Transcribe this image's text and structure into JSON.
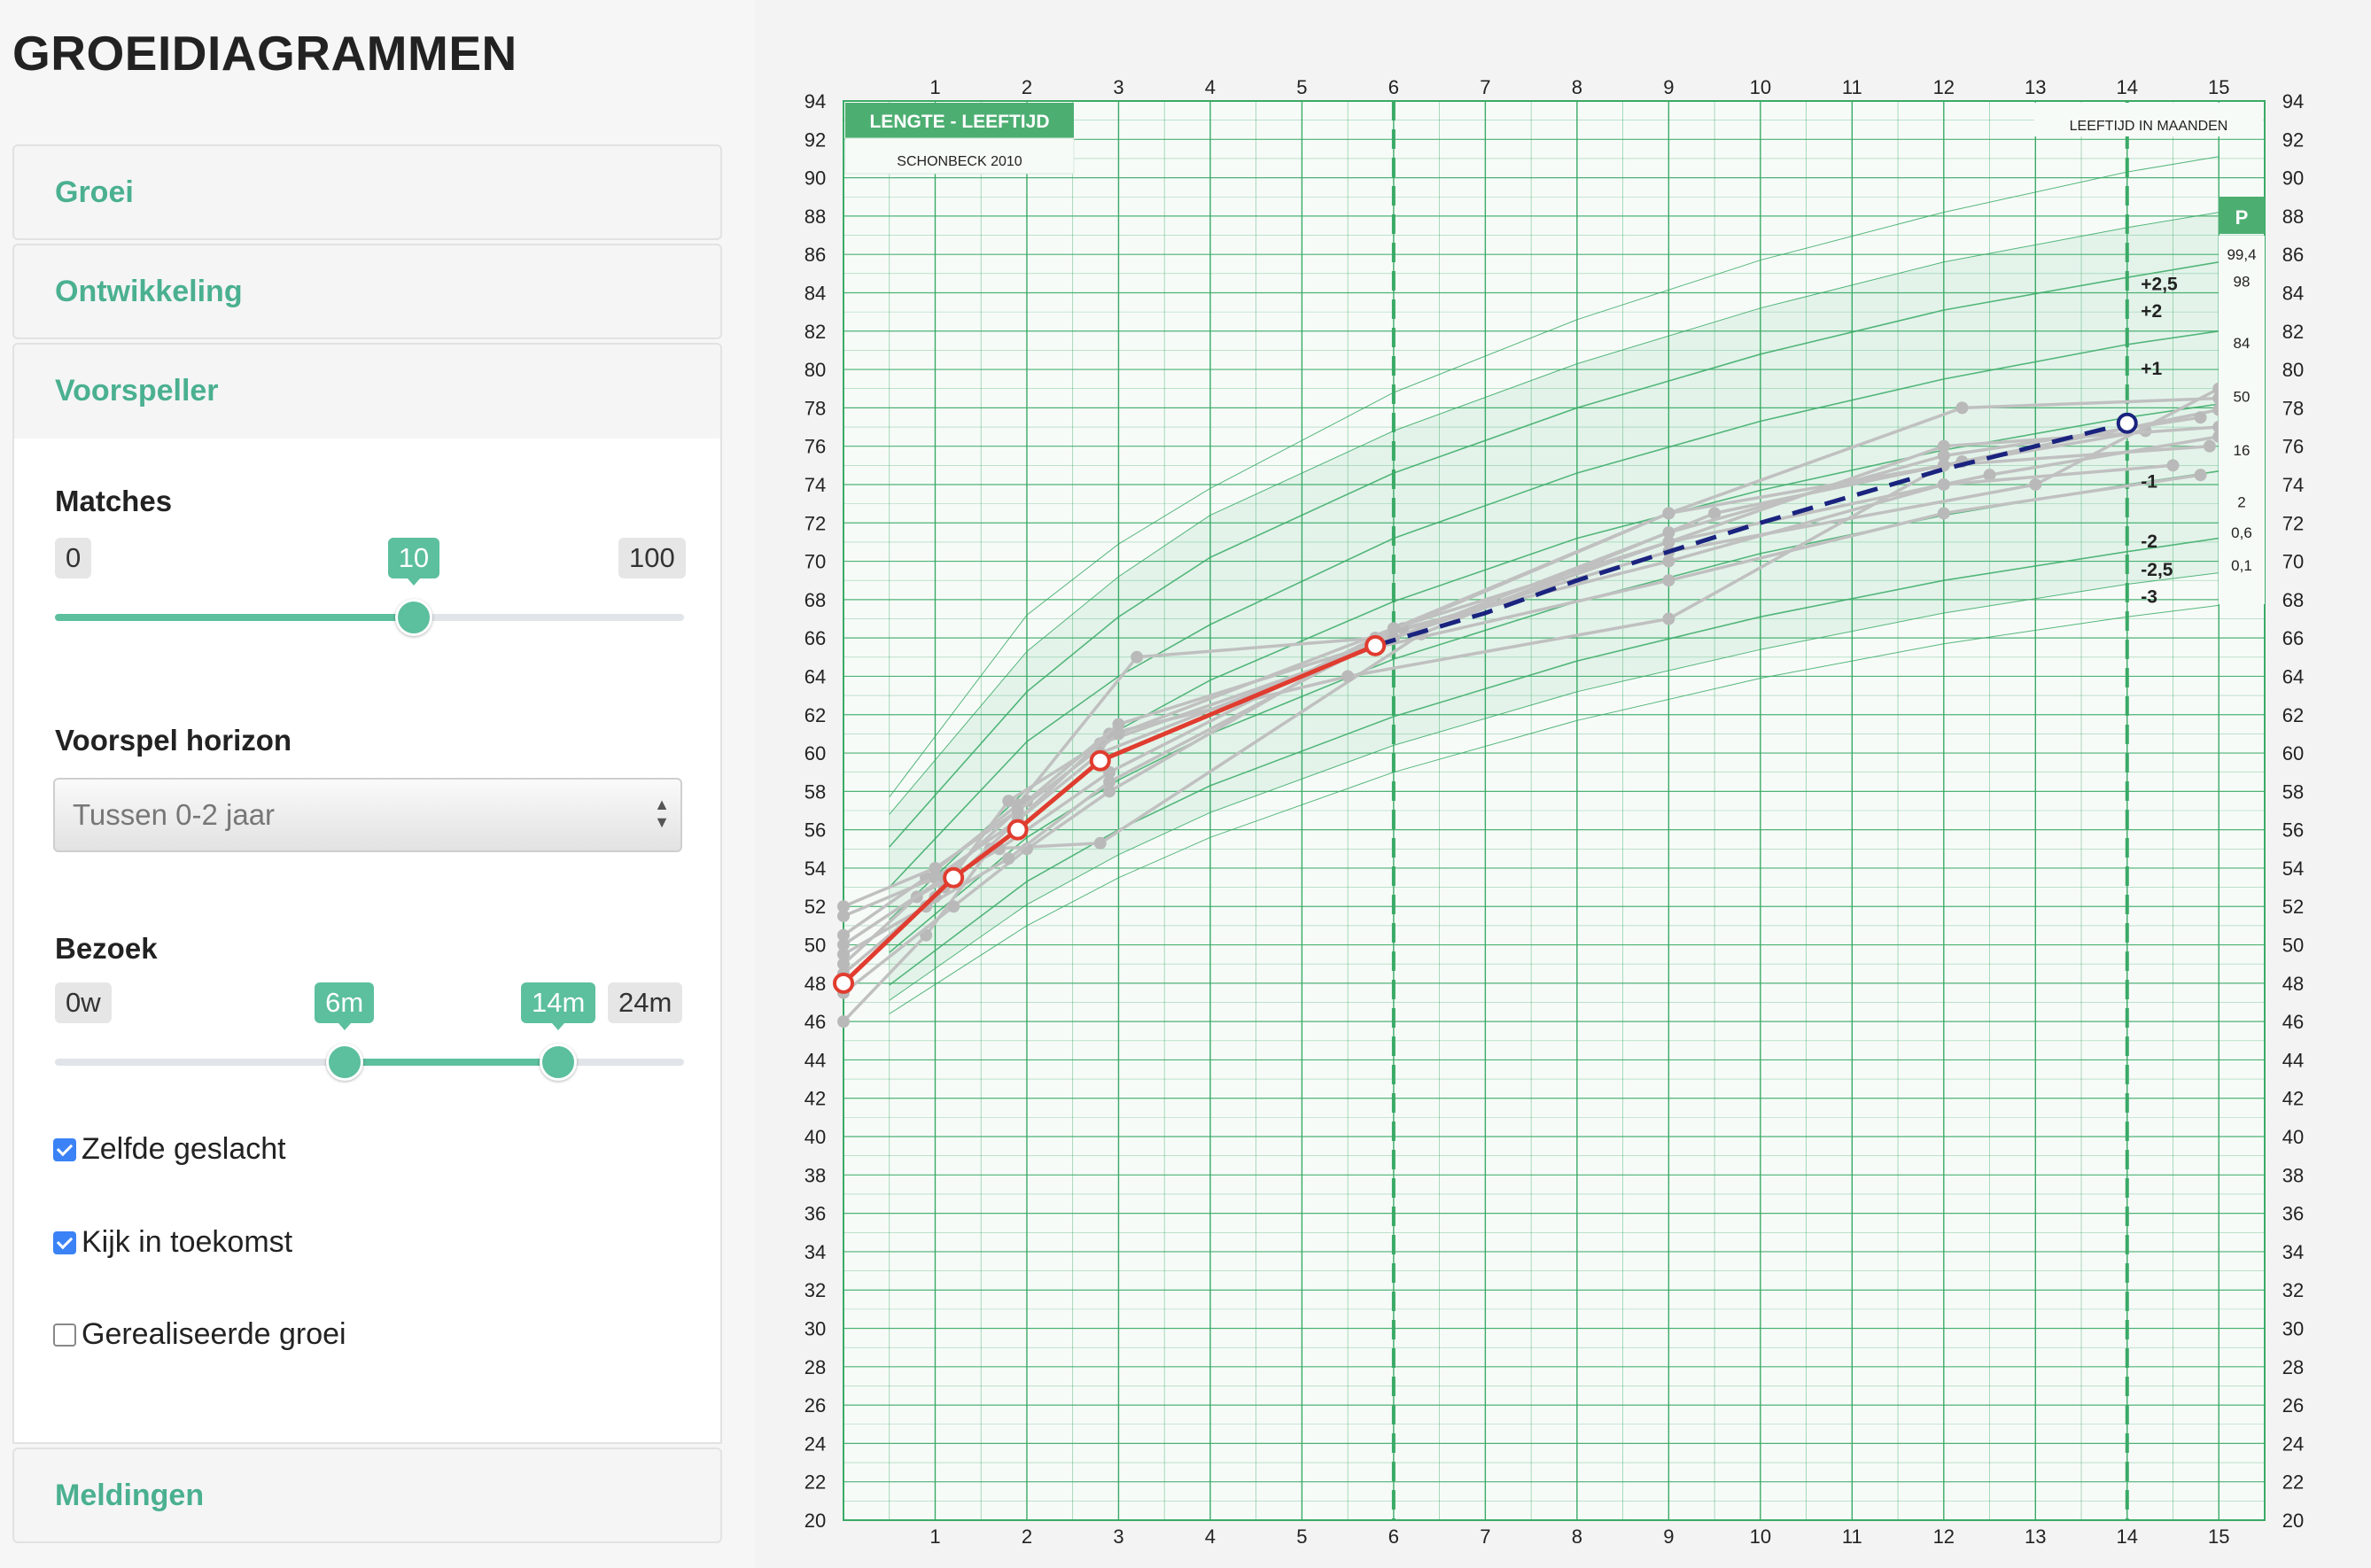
{
  "sidebar": {
    "title": "GROEIDIAGRAMMEN",
    "panels": {
      "groei": "Groei",
      "ontwikkeling": "Ontwikkeling",
      "voorspeller": "Voorspeller",
      "meldingen": "Meldingen"
    },
    "matches": {
      "label": "Matches",
      "min": "0",
      "value": "10",
      "max": "100",
      "value_fraction": 0.57
    },
    "horizon": {
      "label": "Voorspel horizon",
      "selected": "Tussen 0-2 jaar"
    },
    "bezoek": {
      "label": "Bezoek",
      "min": "0w",
      "low": "6m",
      "high": "14m",
      "max": "24m",
      "low_fraction": 0.46,
      "high_fraction": 0.8
    },
    "checkboxes": [
      {
        "label": "Zelfde geslacht",
        "checked": true
      },
      {
        "label": "Kijk in toekomst",
        "checked": true
      },
      {
        "label": "Gerealiseerde groei",
        "checked": false
      }
    ]
  },
  "chart_data": {
    "type": "line",
    "title": "LENGTE - LEEFTIJD",
    "subtitle": "SCHONBECK 2010",
    "xlabel": "LEEFTIJD IN MAANDEN",
    "xlim": [
      0,
      15.5
    ],
    "ylim": [
      20,
      94
    ],
    "x_ticks": [
      1,
      2,
      3,
      4,
      5,
      6,
      7,
      8,
      9,
      10,
      11,
      12,
      13,
      14,
      15
    ],
    "y_ticks": [
      20,
      22,
      24,
      26,
      28,
      30,
      32,
      34,
      36,
      38,
      40,
      42,
      44,
      46,
      48,
      50,
      52,
      54,
      56,
      58,
      60,
      62,
      64,
      66,
      68,
      70,
      72,
      74,
      76,
      78,
      80,
      82,
      84,
      86,
      88,
      90,
      92,
      94
    ],
    "visit_markers": [
      6,
      14
    ],
    "sds_labels": [
      "+2,5",
      "+2",
      "+1",
      "-1",
      "-2",
      "-2,5",
      "-3"
    ],
    "percentile_header": "P",
    "percentile_labels": [
      "99,4",
      "98",
      "84",
      "50",
      "16",
      "2",
      "0,6",
      "0,1"
    ],
    "reference_curves": [
      {
        "sds": 3,
        "points": [
          [
            0.5,
            57.7
          ],
          [
            2,
            67.2
          ],
          [
            3,
            70.9
          ],
          [
            4,
            73.8
          ],
          [
            6,
            78.8
          ],
          [
            8,
            82.6
          ],
          [
            10,
            85.7
          ],
          [
            12,
            88.2
          ],
          [
            14,
            90.3
          ],
          [
            15,
            91.1
          ]
        ]
      },
      {
        "sds": 2.5,
        "points": [
          [
            0.5,
            56.8
          ],
          [
            2,
            65.3
          ],
          [
            3,
            69.2
          ],
          [
            4,
            72.4
          ],
          [
            6,
            76.8
          ],
          [
            8,
            80.3
          ],
          [
            10,
            83.2
          ],
          [
            12,
            85.6
          ],
          [
            14,
            87.4
          ],
          [
            15,
            88.2
          ]
        ]
      },
      {
        "sds": 2,
        "points": [
          [
            0.5,
            55.1
          ],
          [
            2,
            63.2
          ],
          [
            3,
            67.1
          ],
          [
            4,
            70.2
          ],
          [
            6,
            74.6
          ],
          [
            8,
            78.0
          ],
          [
            10,
            80.8
          ],
          [
            12,
            83.1
          ],
          [
            14,
            84.8
          ],
          [
            15,
            85.6
          ]
        ]
      },
      {
        "sds": 1,
        "points": [
          [
            0.5,
            53.0
          ],
          [
            2,
            60.6
          ],
          [
            3,
            64.0
          ],
          [
            4,
            66.7
          ],
          [
            6,
            71.2
          ],
          [
            8,
            74.6
          ],
          [
            10,
            77.3
          ],
          [
            12,
            79.5
          ],
          [
            14,
            81.3
          ],
          [
            15,
            82.0
          ]
        ]
      },
      {
        "sds": 0,
        "points": [
          [
            0.5,
            51.3
          ],
          [
            2,
            58.1
          ],
          [
            3,
            61.2
          ],
          [
            4,
            63.8
          ],
          [
            6,
            67.9
          ],
          [
            8,
            71.2
          ],
          [
            10,
            73.7
          ],
          [
            12,
            75.8
          ],
          [
            14,
            77.5
          ],
          [
            15,
            78.2
          ]
        ]
      },
      {
        "sds": -1,
        "points": [
          [
            0.5,
            49.6
          ],
          [
            2,
            55.6
          ],
          [
            3,
            58.6
          ],
          [
            4,
            61.0
          ],
          [
            6,
            64.9
          ],
          [
            8,
            67.9
          ],
          [
            10,
            70.4
          ],
          [
            12,
            72.4
          ],
          [
            14,
            74.0
          ],
          [
            15,
            74.7
          ]
        ]
      },
      {
        "sds": -2,
        "points": [
          [
            0.5,
            47.9
          ],
          [
            2,
            53.3
          ],
          [
            3,
            56.0
          ],
          [
            4,
            58.3
          ],
          [
            6,
            61.9
          ],
          [
            8,
            64.8
          ],
          [
            10,
            67.1
          ],
          [
            12,
            69.0
          ],
          [
            14,
            70.5
          ],
          [
            15,
            71.2
          ]
        ]
      },
      {
        "sds": -2.5,
        "points": [
          [
            0.5,
            47.1
          ],
          [
            2,
            52.1
          ],
          [
            3,
            54.7
          ],
          [
            4,
            56.9
          ],
          [
            6,
            60.4
          ],
          [
            8,
            63.2
          ],
          [
            10,
            65.4
          ],
          [
            12,
            67.3
          ],
          [
            14,
            68.8
          ],
          [
            15,
            69.4
          ]
        ]
      },
      {
        "sds": -3,
        "points": [
          [
            0.5,
            46.4
          ],
          [
            2,
            51.0
          ],
          [
            3,
            53.5
          ],
          [
            4,
            55.6
          ],
          [
            6,
            59.0
          ],
          [
            8,
            61.7
          ],
          [
            10,
            63.9
          ],
          [
            12,
            65.7
          ],
          [
            14,
            67.1
          ],
          [
            15,
            67.7
          ]
        ]
      }
    ],
    "matched_curves": [
      [
        [
          0,
          50.5
        ],
        [
          0.9,
          53.5
        ],
        [
          1.9,
          57.3
        ],
        [
          3.2,
          65.0
        ],
        [
          5.8,
          66.0
        ],
        [
          9,
          72.5
        ],
        [
          12,
          75.0
        ],
        [
          14.2,
          76.8
        ]
      ],
      [
        [
          0,
          46
        ],
        [
          0.9,
          50.5
        ],
        [
          1.6,
          55.0
        ],
        [
          2.8,
          55.3
        ],
        [
          6.3,
          66.2
        ],
        [
          9.5,
          72.5
        ],
        [
          12.2,
          75.2
        ],
        [
          15.0,
          77.9
        ]
      ],
      [
        [
          0,
          48
        ],
        [
          1.1,
          53.0
        ],
        [
          1.8,
          57.5
        ],
        [
          2.8,
          60.5
        ],
        [
          5.8,
          65.5
        ],
        [
          9,
          69.0
        ],
        [
          12.0,
          72.5
        ],
        [
          14.8,
          74.5
        ]
      ],
      [
        [
          0,
          49
        ],
        [
          0.8,
          52.5
        ],
        [
          1.7,
          55.0
        ],
        [
          2.9,
          59.0
        ],
        [
          6.0,
          66.5
        ],
        [
          9,
          72.5
        ],
        [
          12.2,
          78.0
        ],
        [
          15.0,
          78.5
        ]
      ],
      [
        [
          0,
          51.5
        ],
        [
          1.0,
          53.5
        ],
        [
          1.9,
          56.5
        ],
        [
          2.9,
          61.0
        ],
        [
          5.5,
          64.0
        ],
        [
          9.0,
          67.0
        ],
        [
          12.0,
          75.0
        ],
        [
          14.9,
          76.0
        ]
      ],
      [
        [
          0,
          47.5
        ],
        [
          1.2,
          52.0
        ],
        [
          2.0,
          55.0
        ],
        [
          2.9,
          58.0
        ],
        [
          5.8,
          66.0
        ],
        [
          9.0,
          70.5
        ],
        [
          13.0,
          74.0
        ],
        [
          15.0,
          79.0
        ]
      ],
      [
        [
          0,
          50
        ],
        [
          1.1,
          53.5
        ],
        [
          2.0,
          57.5
        ],
        [
          3.0,
          61.5
        ],
        [
          6.0,
          66.0
        ],
        [
          9.0,
          71.0
        ],
        [
          12.5,
          74.5
        ],
        [
          15.0,
          76.5
        ]
      ],
      [
        [
          0,
          49.5
        ],
        [
          0.9,
          52.0
        ],
        [
          1.8,
          54.5
        ],
        [
          2.9,
          58.5
        ],
        [
          6.1,
          66.5
        ],
        [
          9.0,
          70.0
        ],
        [
          12.0,
          74.0
        ],
        [
          14.5,
          75.0
        ]
      ],
      [
        [
          0,
          52
        ],
        [
          1.0,
          54.0
        ],
        [
          1.9,
          57.0
        ],
        [
          3.0,
          61.0
        ],
        [
          6.0,
          66.5
        ],
        [
          9.0,
          71.0
        ],
        [
          12.0,
          76.0
        ],
        [
          15.0,
          77.0
        ]
      ],
      [
        [
          0,
          48.5
        ],
        [
          1.0,
          52.5
        ],
        [
          1.9,
          56.5
        ],
        [
          2.8,
          60.0
        ],
        [
          6.0,
          66.0
        ],
        [
          9.0,
          71.5
        ],
        [
          12.0,
          75.5
        ],
        [
          14.8,
          77.5
        ]
      ]
    ],
    "measured_series": {
      "name": "",
      "points": [
        [
          0,
          48.0
        ],
        [
          1.2,
          53.5
        ],
        [
          1.9,
          56.0
        ],
        [
          2.8,
          59.6
        ],
        [
          5.8,
          65.6
        ]
      ]
    },
    "predicted_series": {
      "name": "",
      "points": [
        [
          5.8,
          65.6
        ],
        [
          7.0,
          67.3
        ],
        [
          8.0,
          69.0
        ],
        [
          9.0,
          70.5
        ],
        [
          10.0,
          72.0
        ],
        [
          11.0,
          73.4
        ],
        [
          12.0,
          74.8
        ],
        [
          13.0,
          76.0
        ],
        [
          14.0,
          77.2
        ]
      ]
    },
    "colors": {
      "grid": "#3aaa66",
      "measured": "#e03c2f",
      "predicted": "#1a237e",
      "matched": "#c0c0c0",
      "header_fill": "#4dae72"
    }
  }
}
